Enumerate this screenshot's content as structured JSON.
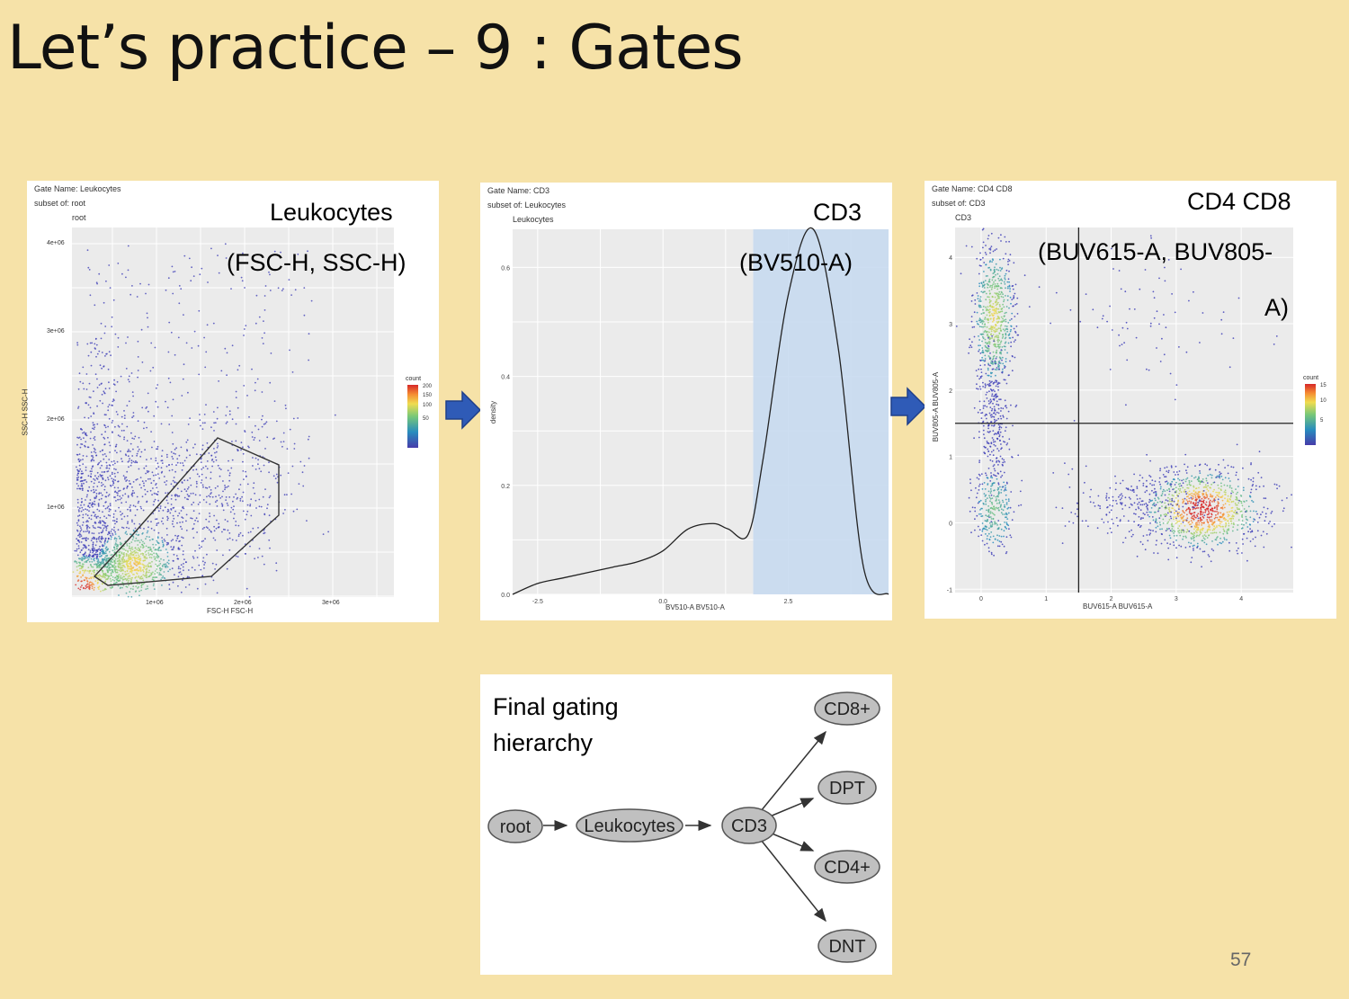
{
  "slide": {
    "title": "Let’s practice – 9 : Gates",
    "page_number": "57"
  },
  "panels": [
    {
      "gate_name": "Gate Name: Leukocytes",
      "subset_of": "subset of: root",
      "parent": "root",
      "label": "Leukocytes",
      "channels": "(FSC-H, SSC-H)",
      "x_label": "FSC-H FSC-H",
      "y_label": "SSC-H SSC-H",
      "x_ticks": [
        "1e+06",
        "2e+06",
        "3e+06"
      ],
      "y_ticks": [
        "4e+06",
        "3e+06",
        "2e+06",
        "1e+06"
      ],
      "legend_title": "count",
      "legend_ticks": [
        "200",
        "150",
        "100",
        "50"
      ]
    },
    {
      "gate_name": "Gate Name: CD3",
      "subset_of": "subset of: Leukocytes",
      "parent": "Leukocytes",
      "label": "CD3",
      "channels": "(BV510-A)",
      "x_label": "BV510-A BV510-A",
      "y_label": "density",
      "x_ticks": [
        "-2.5",
        "0.0",
        "2.5"
      ],
      "y_ticks": [
        "0.6",
        "0.4",
        "0.2",
        "0.0"
      ]
    },
    {
      "gate_name": "Gate Name: CD4 CD8",
      "subset_of": "subset of: CD3",
      "parent": "CD3",
      "label": "CD4 CD8",
      "channels_line1": "(BUV615-A, BUV805-",
      "channels_line2": "A)",
      "x_label": "BUV615-A BUV615-A",
      "y_label": "BUV805-A BUV805-A",
      "x_ticks": [
        "0",
        "1",
        "2",
        "3",
        "4"
      ],
      "y_ticks": [
        "4",
        "3",
        "2",
        "1",
        "0",
        "-1"
      ],
      "legend_title": "count",
      "legend_ticks": [
        "15",
        "10",
        "5"
      ]
    }
  ],
  "hierarchy": {
    "title_line1": "Final gating",
    "title_line2": "hierarchy",
    "nodes": {
      "root": "root",
      "leukocytes": "Leukocytes",
      "cd3": "CD3",
      "cd8": "CD8+",
      "dpt": "DPT",
      "cd4": "CD4+",
      "dnt": "DNT"
    }
  },
  "colors": {
    "background": "#f6e2a8",
    "gate_fill": "#c8daf0",
    "point": "#3a3ab8",
    "arrow": "#2f5bb7"
  },
  "chart_data": {
    "type": "line",
    "x": [
      -3.0,
      -2.5,
      -2.0,
      -1.5,
      -1.0,
      -0.5,
      0.0,
      0.5,
      1.0,
      1.3,
      1.7,
      2.0,
      2.5,
      3.0,
      3.5,
      4.0,
      4.5
    ],
    "y": [
      0.0,
      0.02,
      0.03,
      0.04,
      0.05,
      0.06,
      0.08,
      0.12,
      0.13,
      0.12,
      0.11,
      0.25,
      0.55,
      0.67,
      0.45,
      0.05,
      0.0
    ],
    "xlabel": "BV510-A BV510-A",
    "ylabel": "density",
    "ylim": [
      0,
      0.67
    ],
    "xlim": [
      -3.0,
      4.5
    ],
    "gate_range": [
      1.8,
      4.5
    ],
    "grid": true
  }
}
